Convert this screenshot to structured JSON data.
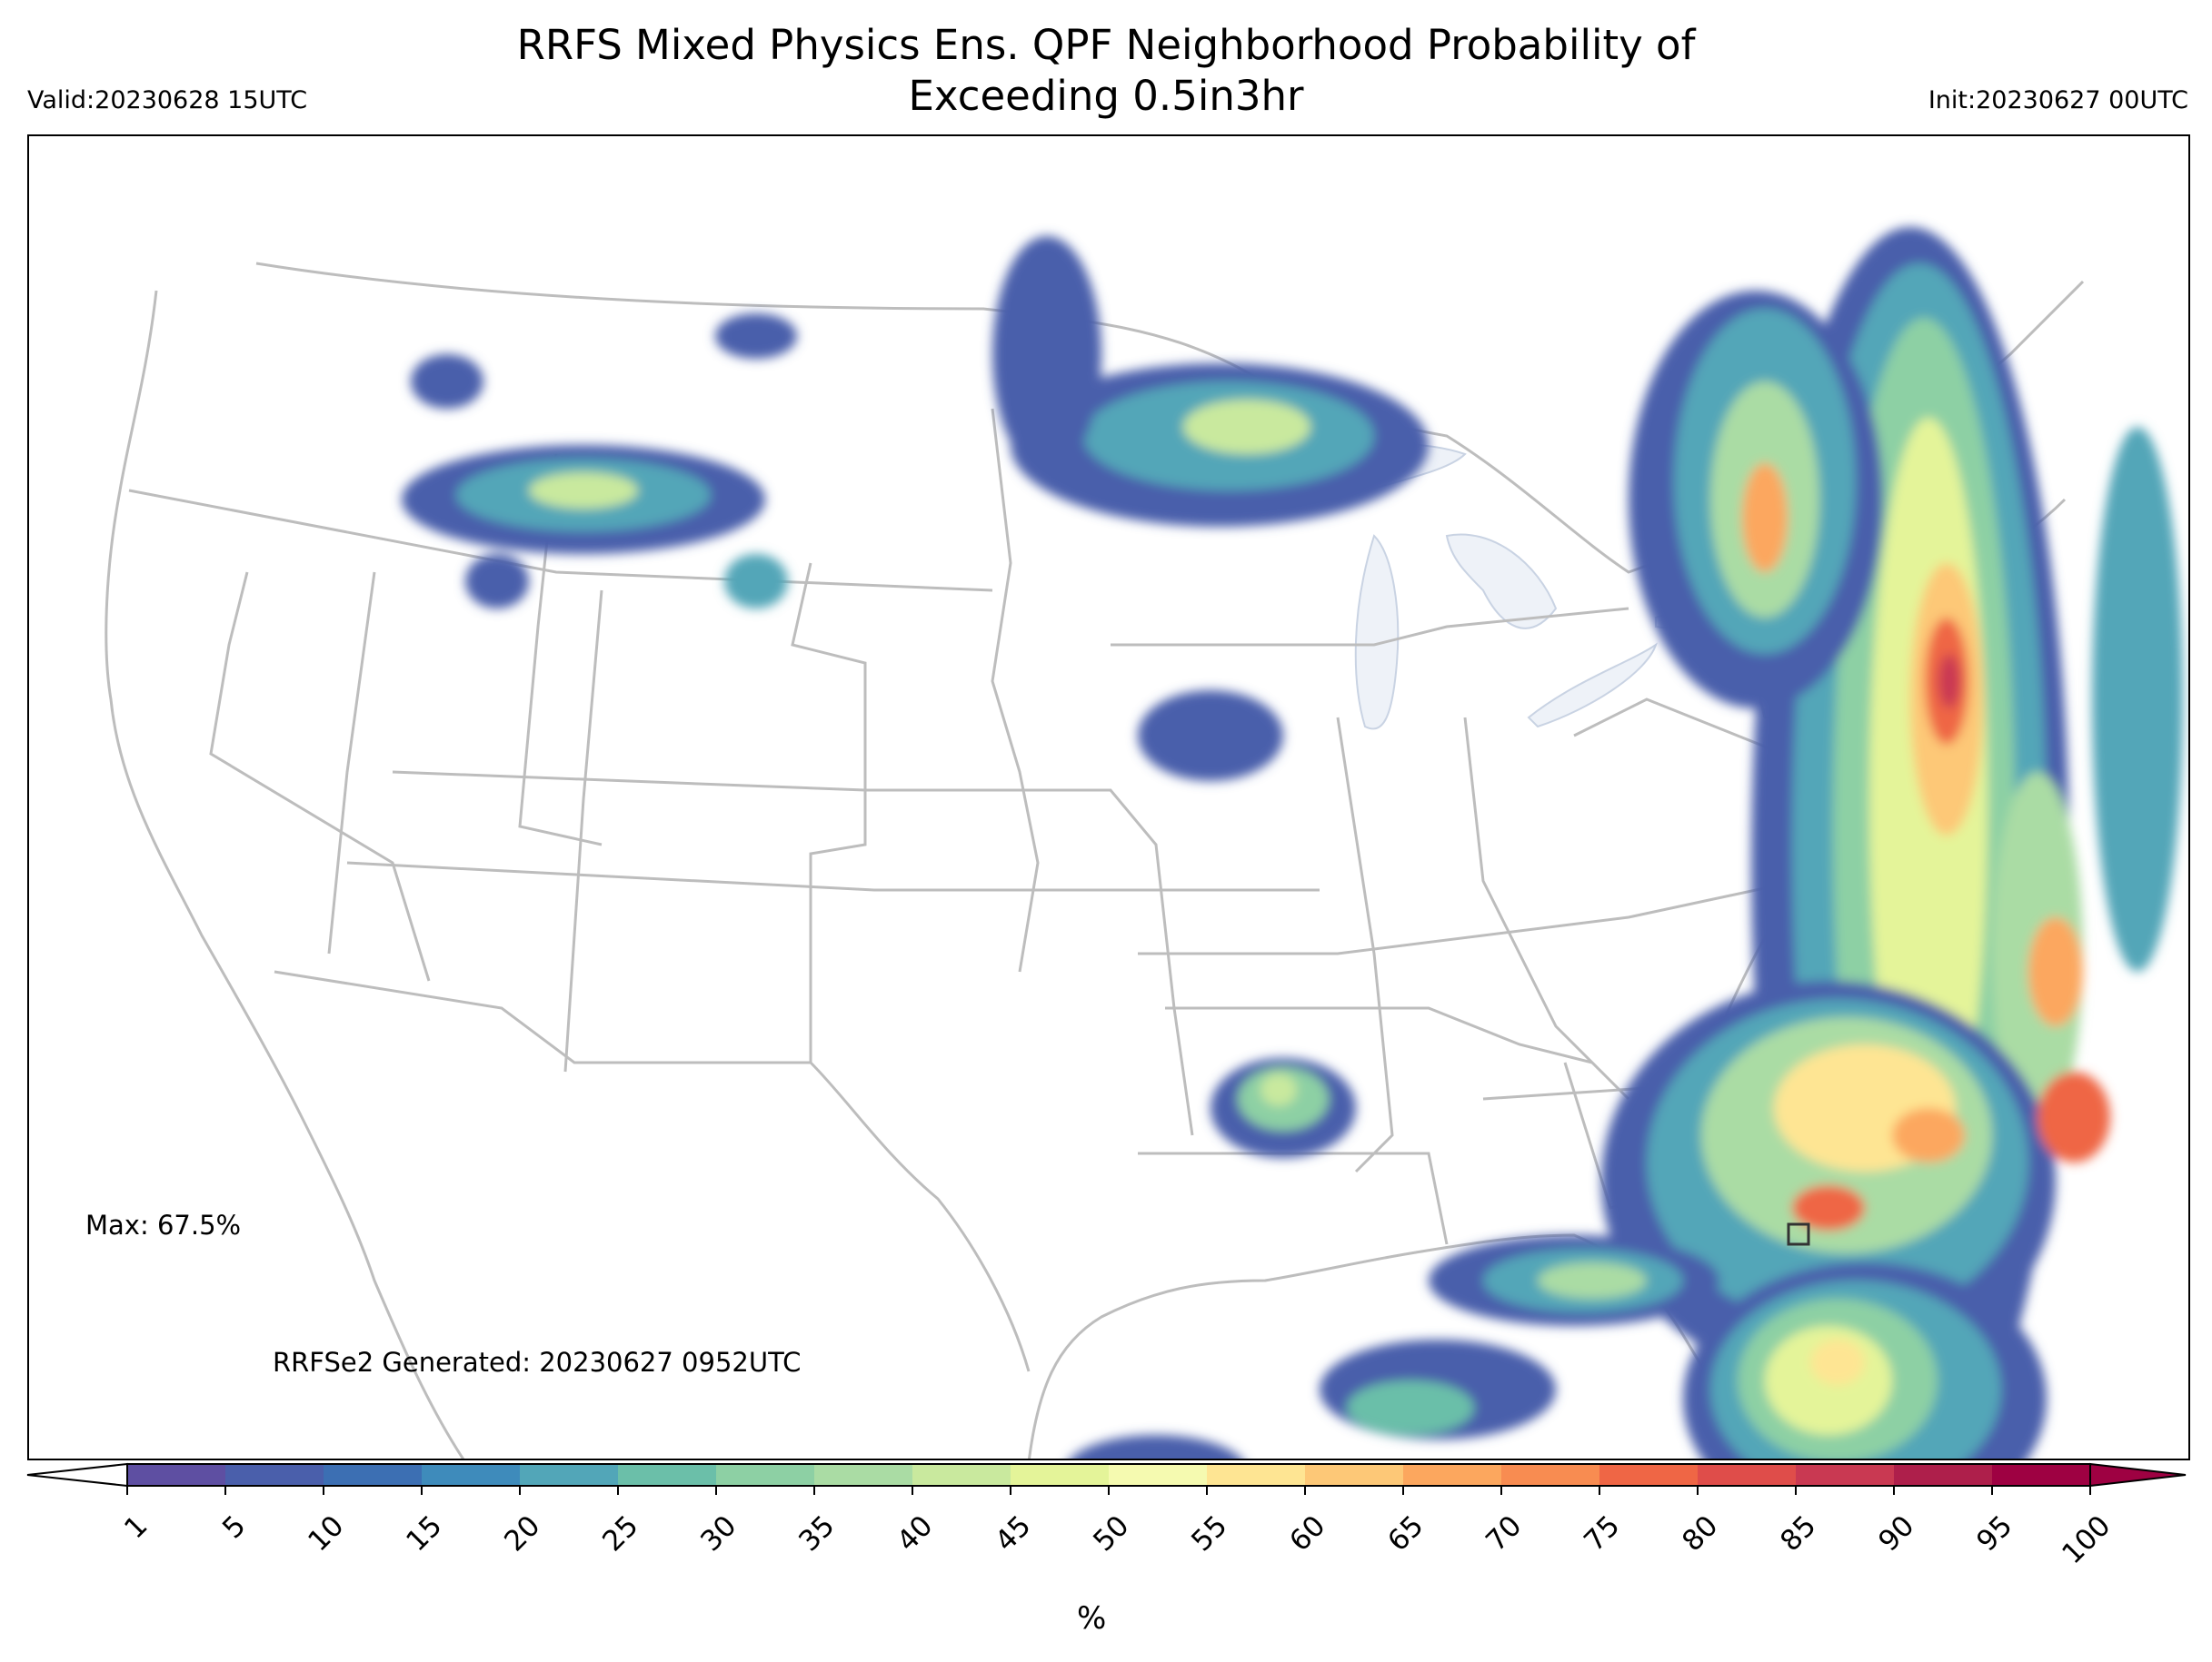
{
  "title_line1": "RRFS Mixed Physics Ens. QPF Neighborhood Probability of",
  "title_line2": "Exceeding 0.5in3hr",
  "valid_label": "Valid:20230628 15UTC",
  "init_label": "Init:20230627 00UTC",
  "max_label": "Max: 67.5%",
  "generated_label": "RRFSe2 Generated: 20230627 0952UTC",
  "colorbar": {
    "unit": "%",
    "ticks": [
      "1",
      "5",
      "10",
      "15",
      "20",
      "25",
      "30",
      "35",
      "40",
      "45",
      "50",
      "55",
      "60",
      "65",
      "70",
      "75",
      "80",
      "85",
      "90",
      "95",
      "100"
    ],
    "colors": [
      "#5e4fa2",
      "#4a5fab",
      "#3c6fb3",
      "#3e8bbb",
      "#52a6b8",
      "#6bbfa9",
      "#8dd0a4",
      "#aadca4",
      "#c9e99e",
      "#e4f499",
      "#f5fab0",
      "#fee593",
      "#fdc877",
      "#fca75e",
      "#f88c51",
      "#ef6645",
      "#df4d4a",
      "#c93952",
      "#ae1f4b",
      "#9e0142"
    ],
    "under_color": "#ffffff",
    "over_color": "#9e0142"
  },
  "map_colors": {
    "state_lines": "#bdbdbd",
    "lakes": "#eef2f8",
    "marker": "#333333"
  }
}
